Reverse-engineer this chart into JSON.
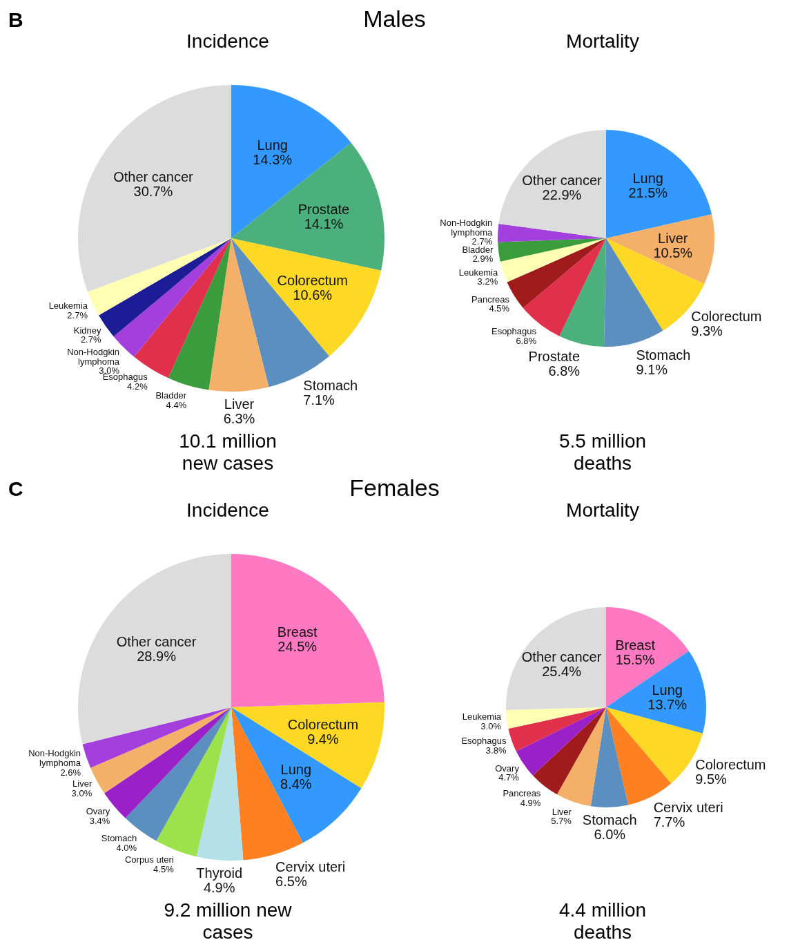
{
  "chart_data": [
    {
      "type": "pie",
      "title": "Incidence",
      "annotations": [
        "B",
        "Males",
        "10.1 million new cases"
      ],
      "categories": [
        "Lung",
        "Prostate",
        "Colorectum",
        "Stomach",
        "Liver",
        "Bladder",
        "Esophagus",
        "Non-Hodgkin lymphoma",
        "Kidney",
        "Leukemia",
        "Other cancer"
      ],
      "values": [
        14.3,
        14.1,
        10.6,
        7.1,
        6.3,
        4.4,
        4.2,
        3.0,
        2.7,
        2.7,
        30.7
      ],
      "value_labels": [
        "14.3%",
        "14.1%",
        "10.6%",
        "7.1%",
        "6.3%",
        "4.4%",
        "4.2%",
        "3.0%",
        "2.7%",
        "2.7%",
        "30.7%"
      ],
      "colors": [
        "#3399ff",
        "#4cb07c",
        "#fdd825",
        "#5a8fc0",
        "#f4b068",
        "#3a9c3c",
        "#e0304c",
        "#a33fdc",
        "#1c1c96",
        "#ffffb4",
        "#dcdcdc"
      ]
    },
    {
      "type": "pie",
      "title": "Mortality",
      "annotations": [
        "5.5 million deaths"
      ],
      "categories": [
        "Lung",
        "Liver",
        "Colorectum",
        "Stomach",
        "Prostate",
        "Esophagus",
        "Pancreas",
        "Leukemia",
        "Bladder",
        "Non-Hodgkin lymphoma",
        "Other cancer"
      ],
      "values": [
        21.5,
        10.5,
        9.3,
        9.1,
        6.8,
        6.8,
        4.5,
        3.2,
        2.9,
        2.7,
        22.9
      ],
      "value_labels": [
        "21.5%",
        "10.5%",
        "9.3%",
        "9.1%",
        "6.8%",
        "6.8%",
        "4.5%",
        "3.2%",
        "2.9%",
        "2.7%",
        "22.9%"
      ],
      "colors": [
        "#3399ff",
        "#f4b068",
        "#fdd825",
        "#5a8fc0",
        "#4cb07c",
        "#e0304c",
        "#a01c1c",
        "#ffffb4",
        "#3a9c3c",
        "#a33fdc",
        "#dcdcdc"
      ]
    },
    {
      "type": "pie",
      "title": "Incidence",
      "annotations": [
        "C",
        "Females",
        "9.2 million new cases"
      ],
      "categories": [
        "Breast",
        "Colorectum",
        "Lung",
        "Cervix uteri",
        "Thyroid",
        "Corpus uteri",
        "Stomach",
        "Ovary",
        "Liver",
        "Non-Hodgkin lymphoma",
        "Other cancer"
      ],
      "values": [
        24.5,
        9.4,
        8.4,
        6.5,
        4.9,
        4.5,
        4.0,
        3.4,
        3.0,
        2.6,
        28.9
      ],
      "value_labels": [
        "24.5%",
        "9.4%",
        "8.4%",
        "6.5%",
        "4.9%",
        "4.5%",
        "4.0%",
        "3.4%",
        "3.0%",
        "2.6%",
        "28.9%"
      ],
      "colors": [
        "#ff78c2",
        "#fdd825",
        "#3399ff",
        "#ff8020",
        "#b4e0ea",
        "#9be24c",
        "#5a8fc0",
        "#9a20c8",
        "#f4b068",
        "#a33fdc",
        "#dcdcdc"
      ]
    },
    {
      "type": "pie",
      "title": "Mortality",
      "annotations": [
        "4.4 million deaths"
      ],
      "categories": [
        "Breast",
        "Lung",
        "Colorectum",
        "Cervix uteri",
        "Stomach",
        "Liver",
        "Pancreas",
        "Ovary",
        "Esophagus",
        "Leukemia",
        "Other cancer"
      ],
      "values": [
        15.5,
        13.7,
        9.5,
        7.7,
        6.0,
        5.7,
        4.9,
        4.7,
        3.8,
        3.0,
        25.4
      ],
      "value_labels": [
        "15.5%",
        "13.7%",
        "9.5%",
        "7.7%",
        "6.0%",
        "5.7%",
        "4.9%",
        "4.7%",
        "3.8%",
        "3.0%",
        "25.4%"
      ],
      "colors": [
        "#ff78c2",
        "#3399ff",
        "#fdd825",
        "#ff8020",
        "#5a8fc0",
        "#f4b068",
        "#a01c1c",
        "#9a20c8",
        "#e0304c",
        "#ffffb4",
        "#dcdcdc"
      ]
    }
  ]
}
